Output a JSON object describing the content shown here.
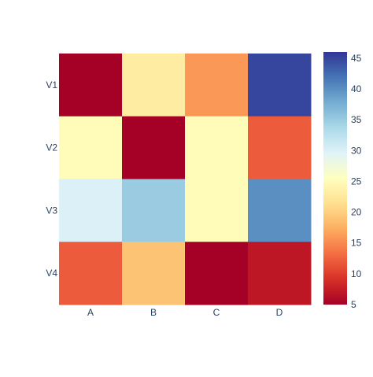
{
  "chart_data": {
    "type": "heatmap",
    "x": [
      "A",
      "B",
      "C",
      "D"
    ],
    "y": [
      "V1",
      "V2",
      "V3",
      "V4"
    ],
    "z": [
      [
        5,
        23,
        16,
        45
      ],
      [
        25,
        5,
        25,
        12
      ],
      [
        30,
        35,
        25,
        40
      ],
      [
        12,
        19,
        5,
        7
      ]
    ],
    "colorscale": "RdYlBu",
    "colorbar": {
      "range": [
        5,
        46
      ],
      "ticks": [
        "5",
        "10",
        "15",
        "20",
        "25",
        "30",
        "35",
        "40",
        "45"
      ]
    },
    "title": "",
    "xlabel": "",
    "ylabel": ""
  }
}
